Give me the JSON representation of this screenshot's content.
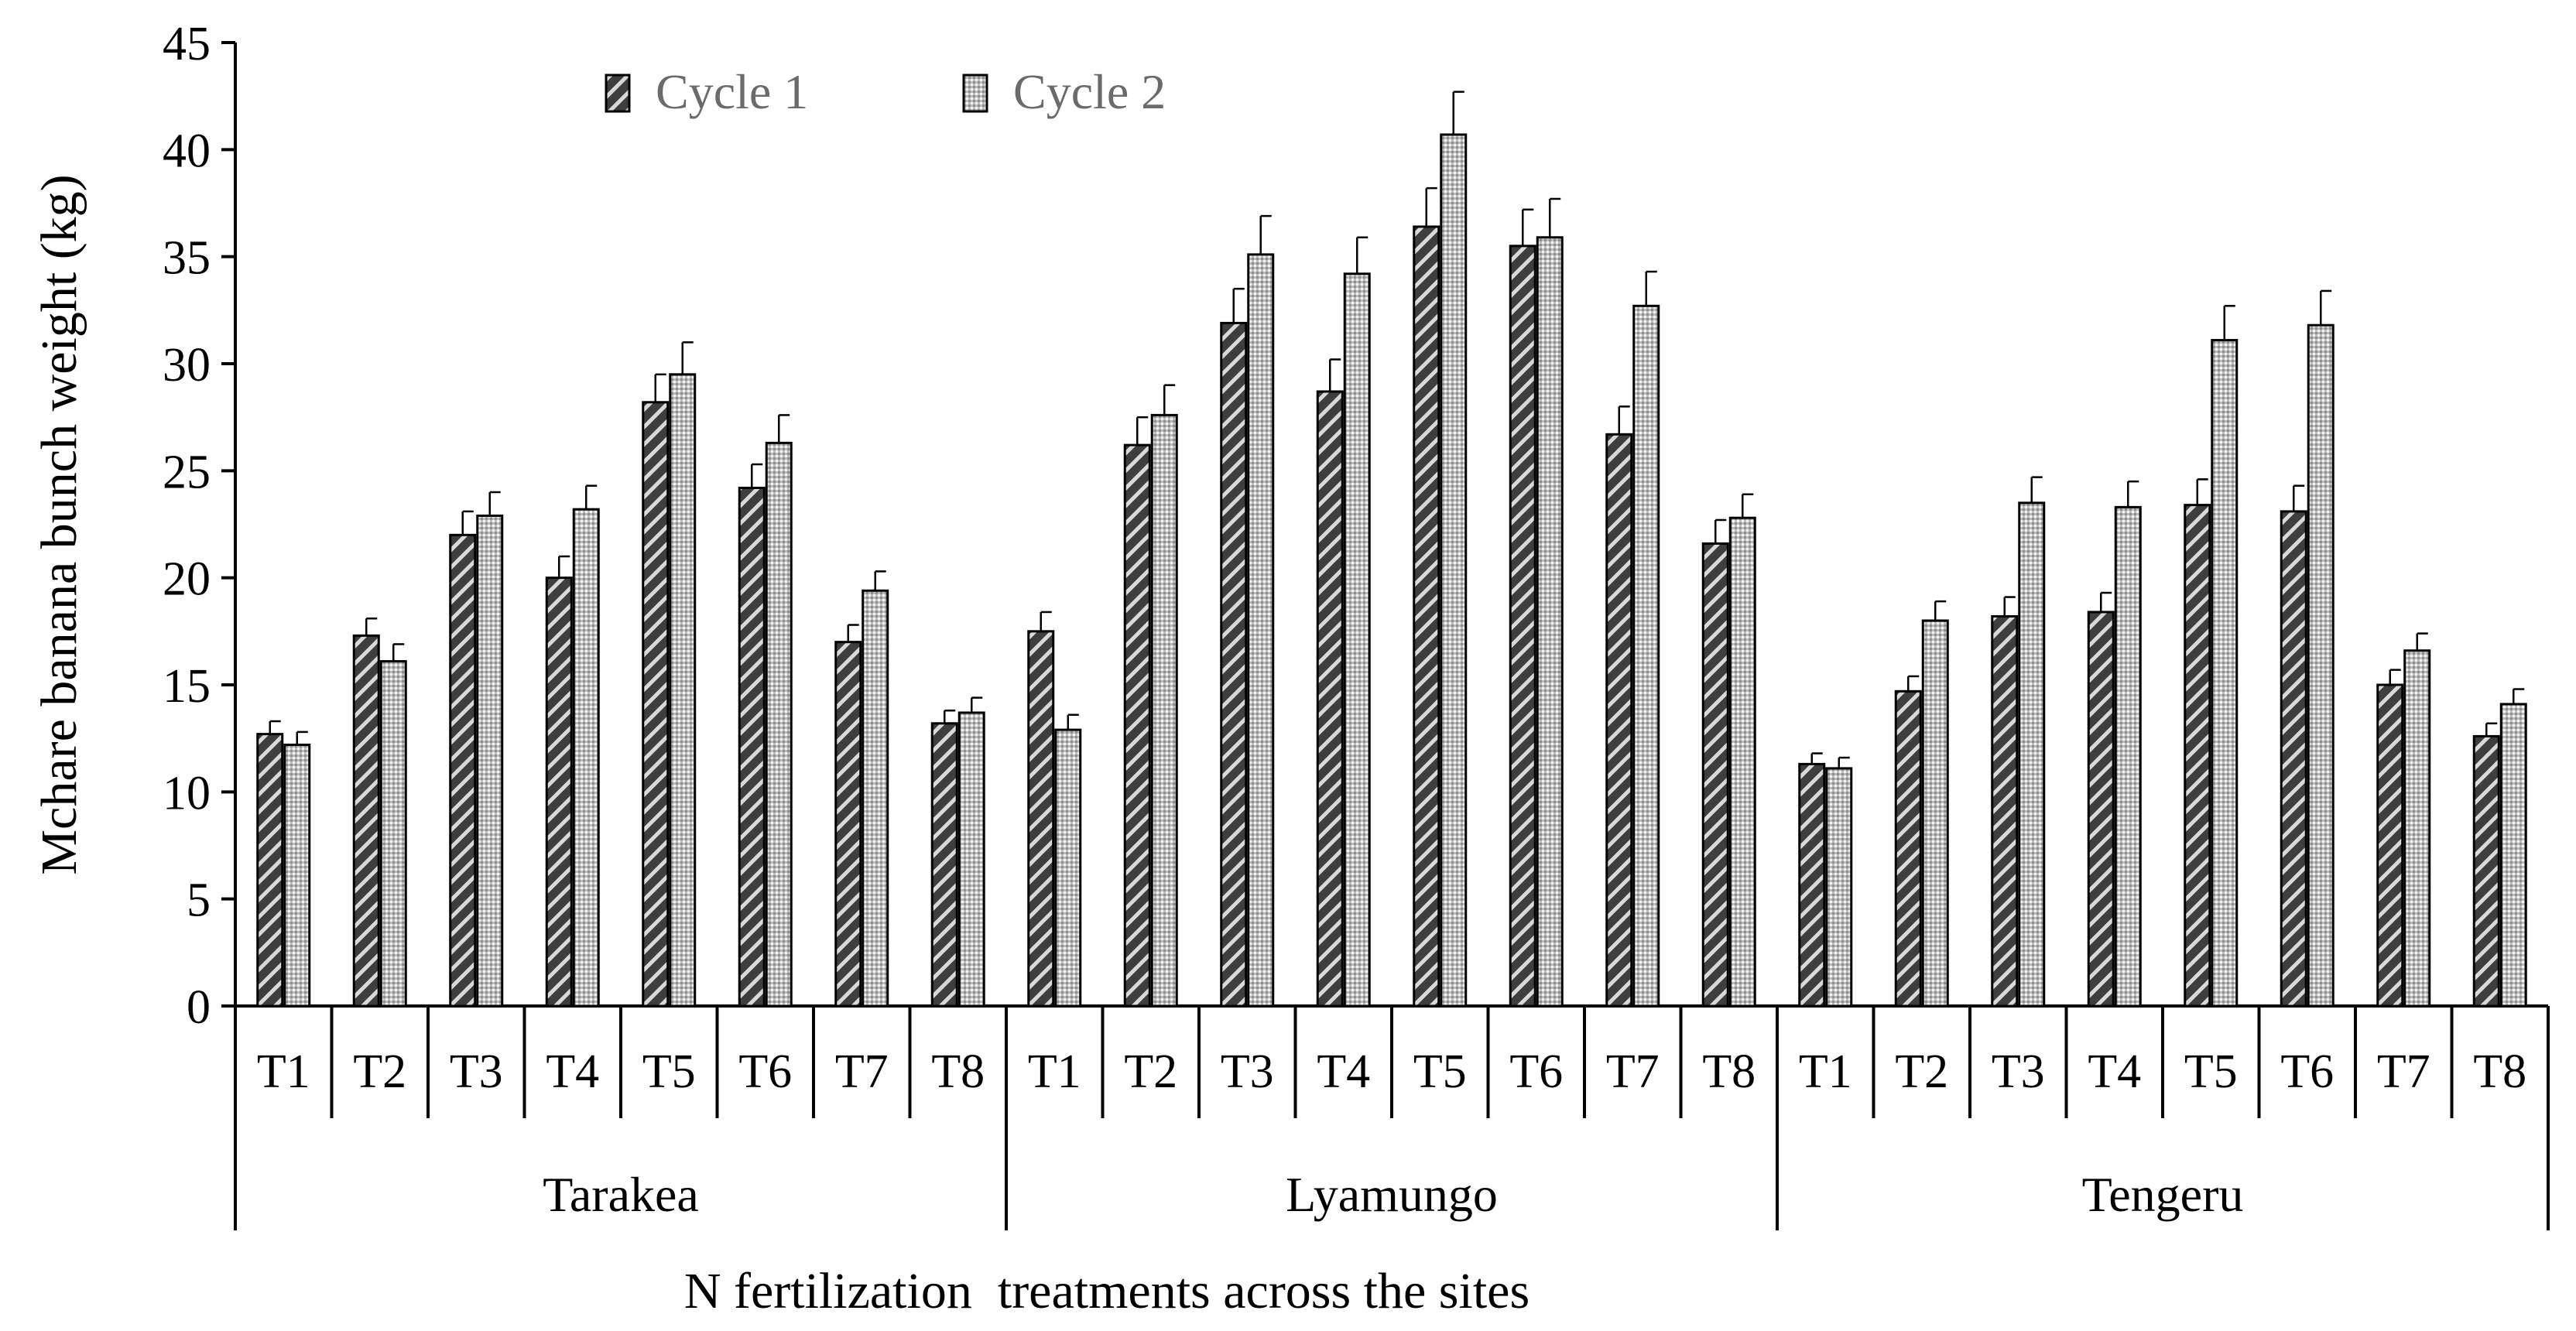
{
  "chart_data": {
    "type": "bar",
    "title": "",
    "xlabel": "N fertilization  treatments across the sites",
    "ylabel": "Mchare banana bunch weight (kg)",
    "ylim": [
      0,
      45
    ],
    "yticks": [
      0,
      5,
      10,
      15,
      20,
      25,
      30,
      35,
      40,
      45
    ],
    "grid": false,
    "legend_position": "top-center",
    "groups": [
      "Tarakea",
      "Lyamungo",
      "Tengeru"
    ],
    "treatments": [
      "T1",
      "T2",
      "T3",
      "T4",
      "T5",
      "T6",
      "T7",
      "T8"
    ],
    "colors": {
      "cycle1": "#444444",
      "cycle2": "#c8c8c8",
      "axis": "#000000",
      "legend_text": "#6b6b6b"
    },
    "series": [
      {
        "name": "Cycle 1",
        "pattern": "diagonal-stripes",
        "values": [
          12.7,
          17.3,
          22.0,
          20.0,
          28.2,
          24.2,
          17.0,
          13.2,
          17.5,
          26.2,
          31.9,
          28.7,
          36.4,
          35.5,
          26.7,
          21.6,
          11.3,
          14.7,
          18.2,
          18.4,
          23.4,
          23.1,
          15.0,
          12.6
        ],
        "errors": [
          0.6,
          0.8,
          1.1,
          1.0,
          1.3,
          1.1,
          0.8,
          0.6,
          0.9,
          1.3,
          1.6,
          1.5,
          1.8,
          1.7,
          1.3,
          1.1,
          0.5,
          0.7,
          0.9,
          0.9,
          1.2,
          1.2,
          0.7,
          0.6
        ]
      },
      {
        "name": "Cycle 2",
        "pattern": "dots",
        "values": [
          12.2,
          16.1,
          22.9,
          23.2,
          29.5,
          26.3,
          19.4,
          13.7,
          12.9,
          27.6,
          35.1,
          34.2,
          40.7,
          35.9,
          32.7,
          22.8,
          11.1,
          18.0,
          23.5,
          23.3,
          31.1,
          31.8,
          16.6,
          14.1
        ],
        "errors": [
          0.6,
          0.8,
          1.1,
          1.1,
          1.5,
          1.3,
          0.9,
          0.7,
          0.7,
          1.4,
          1.8,
          1.7,
          2.0,
          1.8,
          1.6,
          1.1,
          0.5,
          0.9,
          1.2,
          1.2,
          1.6,
          1.6,
          0.8,
          0.7
        ]
      }
    ]
  }
}
